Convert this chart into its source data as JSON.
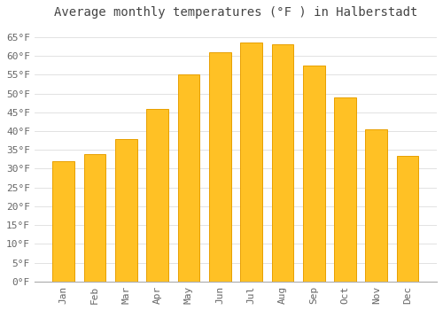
{
  "title": "Average monthly temperatures (°F ) in Halberstadt",
  "months": [
    "Jan",
    "Feb",
    "Mar",
    "Apr",
    "May",
    "Jun",
    "Jul",
    "Aug",
    "Sep",
    "Oct",
    "Nov",
    "Dec"
  ],
  "values": [
    32,
    34,
    38,
    46,
    55,
    61,
    63.5,
    63,
    57.5,
    49,
    40.5,
    33.5
  ],
  "bar_color_face": "#FFC125",
  "bar_color_edge": "#E8A000",
  "background_color": "#FFFFFF",
  "grid_color": "#DDDDDD",
  "text_color": "#666666",
  "ylim": [
    0,
    68
  ],
  "yticks": [
    0,
    5,
    10,
    15,
    20,
    25,
    30,
    35,
    40,
    45,
    50,
    55,
    60,
    65
  ],
  "title_fontsize": 10,
  "tick_fontsize": 8
}
